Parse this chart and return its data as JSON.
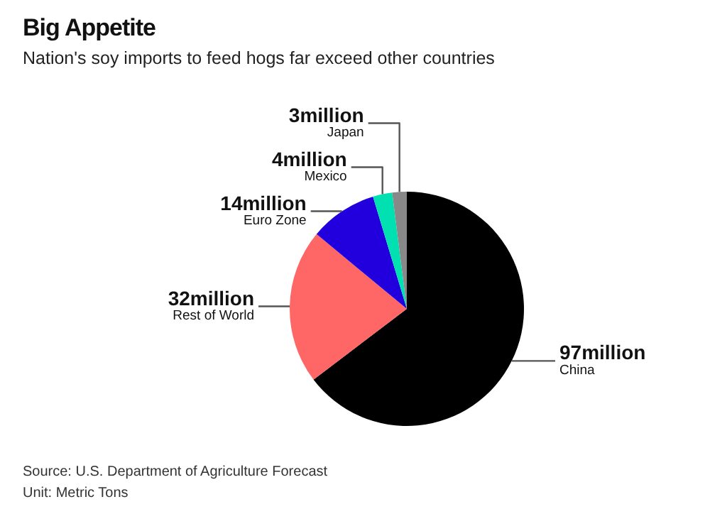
{
  "chart_data": {
    "type": "pie",
    "title": "Big Appetite",
    "subtitle": "Nation's soy imports to feed hogs far exceed other countries",
    "categories": [
      "China",
      "Rest of World",
      "Euro Zone",
      "Mexico",
      "Japan"
    ],
    "values": [
      97,
      32,
      14,
      4,
      3
    ],
    "value_labels": [
      "97million",
      "32million",
      "14million",
      "4million",
      "3million"
    ],
    "colors": [
      "#000000",
      "#ff6666",
      "#2200dd",
      "#00e0b0",
      "#888888"
    ],
    "annotations": [
      "Source: U.S. Department of Agriculture Forecast",
      "Unit: Metric Tons"
    ],
    "legend": false
  }
}
